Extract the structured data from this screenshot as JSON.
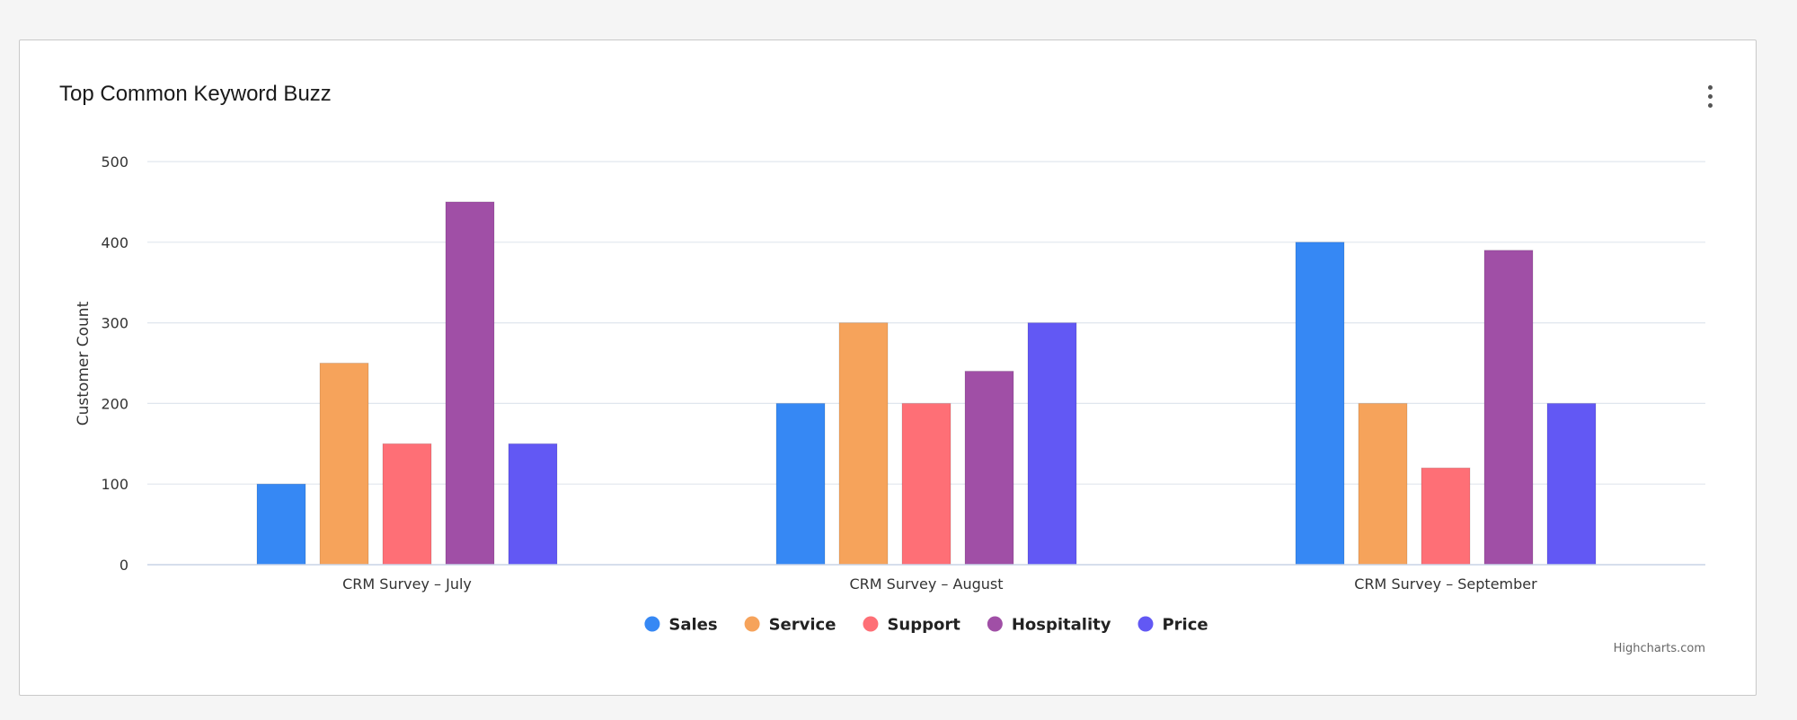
{
  "card": {
    "title": "Top Common Keyword Buzz",
    "menu_icon": "more-vertical-icon"
  },
  "chart_data": {
    "type": "bar",
    "categories": [
      "CRM Survey – July",
      "CRM Survey – August",
      "CRM Survey – September"
    ],
    "series": [
      {
        "name": "Sales",
        "values": [
          100,
          200,
          400
        ],
        "color": "#3688f4"
      },
      {
        "name": "Service",
        "values": [
          250,
          300,
          200
        ],
        "color": "#f6a35b"
      },
      {
        "name": "Support",
        "values": [
          150,
          200,
          120
        ],
        "color": "#fe6f76"
      },
      {
        "name": "Hospitality",
        "values": [
          450,
          240,
          390
        ],
        "color": "#a04fa6"
      },
      {
        "name": "Price",
        "values": [
          150,
          300,
          200
        ],
        "color": "#6258f4"
      }
    ],
    "xlabel": "",
    "ylabel": "Customer Count",
    "ylim": [
      0,
      500
    ],
    "yticks": [
      0,
      100,
      200,
      300,
      400,
      500
    ],
    "grid": true,
    "legend_position": "bottom-center"
  },
  "credits": "Highcharts.com"
}
